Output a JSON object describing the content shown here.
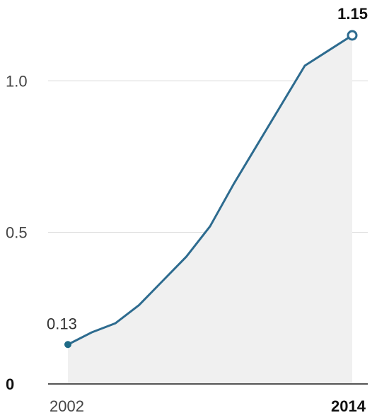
{
  "chart_data": {
    "type": "area",
    "title": "",
    "xlabel": "",
    "ylabel": "",
    "x": [
      2002,
      2003,
      2004,
      2005,
      2006,
      2007,
      2008,
      2009,
      2010,
      2011,
      2012,
      2013,
      2014
    ],
    "series": [
      {
        "values": [
          0.13,
          0.17,
          0.2,
          0.26,
          0.34,
          0.42,
          0.52,
          0.66,
          0.79,
          0.92,
          1.05,
          1.1,
          1.15
        ]
      }
    ],
    "ylim": [
      0,
      1.15
    ],
    "yticks": [
      {
        "value": 0,
        "label": "0"
      },
      {
        "value": 0.5,
        "label": "0.5"
      },
      {
        "value": 1.0,
        "label": "1.0"
      }
    ],
    "xticks": [
      {
        "value": 2002,
        "label": "2002"
      },
      {
        "value": 2014,
        "label": "2014"
      }
    ],
    "annotations": {
      "start_label": "0.13",
      "end_label": "1.15"
    },
    "grid": true,
    "legend": "none",
    "colors": {
      "line": "#2d6b8f",
      "area": "#f0f0f0",
      "start_marker": "#1f6a86"
    }
  }
}
